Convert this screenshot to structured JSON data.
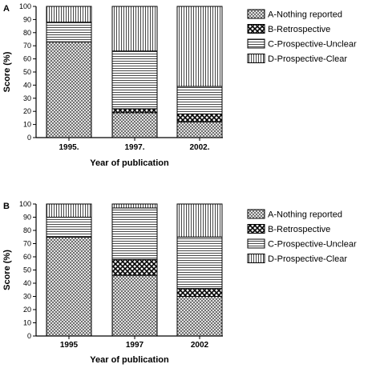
{
  "chart_data": [
    {
      "type": "bar",
      "stacked": true,
      "panel_label": "A",
      "title": "",
      "categories": [
        "1995.",
        "1997.",
        "2002."
      ],
      "xlabel": "Year of publication",
      "ylabel": "Score (%)",
      "ylim": [
        0,
        100
      ],
      "yticks": [
        0,
        10,
        20,
        30,
        40,
        50,
        60,
        70,
        80,
        90,
        100
      ],
      "legend_position": "right",
      "series": [
        {
          "name": "A-Nothing reported",
          "values": [
            73,
            19,
            12
          ],
          "pattern": "crosshatch-fine"
        },
        {
          "name": "B-Retrospective",
          "values": [
            0,
            3,
            6
          ],
          "pattern": "checker-bold"
        },
        {
          "name": "C-Prospective-Unclear",
          "values": [
            15,
            44,
            21
          ],
          "pattern": "horizontal-lines"
        },
        {
          "name": "D-Prospective-Clear",
          "values": [
            12,
            34,
            61
          ],
          "pattern": "vertical-lines"
        }
      ]
    },
    {
      "type": "bar",
      "stacked": true,
      "panel_label": "B",
      "title": "",
      "categories": [
        "1995",
        "1997",
        "2002"
      ],
      "xlabel": "Year of publication",
      "ylabel": "Score (%)",
      "ylim": [
        0,
        100
      ],
      "yticks": [
        0,
        10,
        20,
        30,
        40,
        50,
        60,
        70,
        80,
        90,
        100
      ],
      "legend_position": "right",
      "series": [
        {
          "name": "A-Nothing reported",
          "values": [
            75,
            46,
            30
          ],
          "pattern": "crosshatch-fine"
        },
        {
          "name": "B-Retrospective",
          "values": [
            0,
            12,
            6
          ],
          "pattern": "checker-bold"
        },
        {
          "name": "C-Prospective-Unclear",
          "values": [
            15,
            39,
            39
          ],
          "pattern": "horizontal-lines"
        },
        {
          "name": "D-Prospective-Clear",
          "values": [
            10,
            3,
            25
          ],
          "pattern": "vertical-lines"
        }
      ]
    }
  ]
}
